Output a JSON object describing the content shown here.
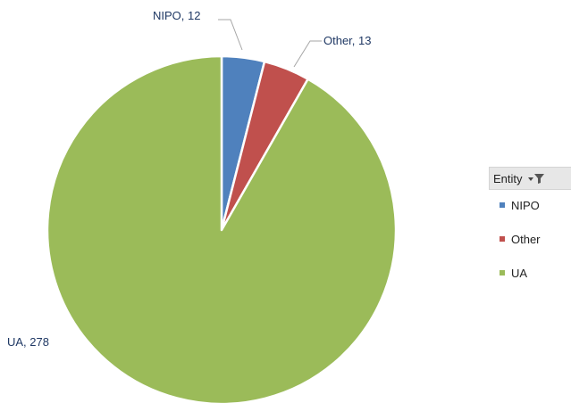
{
  "legend": {
    "title": "Entity",
    "filter_icon": "filter-dropdown-icon"
  },
  "chart_data": {
    "type": "pie",
    "title": "",
    "field": "Entity",
    "start_angle_deg": 0,
    "direction": "clockwise",
    "slices": [
      {
        "label": "NIPO",
        "value": 12,
        "color": "#4f81bd",
        "data_label": "NIPO, 12"
      },
      {
        "label": "Other",
        "value": 13,
        "color": "#c0504d",
        "data_label": "Other, 13"
      },
      {
        "label": "UA",
        "value": 278,
        "color": "#9bbb59",
        "data_label": "UA, 278"
      }
    ],
    "legend_position": "right"
  }
}
